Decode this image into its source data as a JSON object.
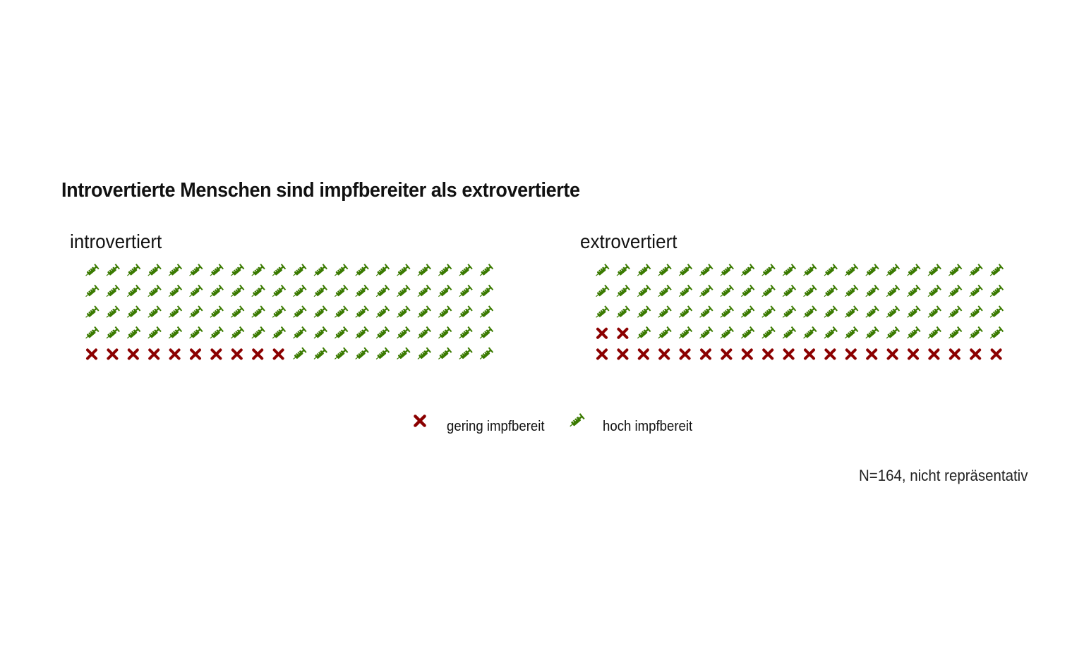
{
  "chart_data": {
    "type": "waffle",
    "title": "Introvertierte Menschen sind impfbereiter als extrovertierte",
    "caption": "N=164, nicht repräsentativ",
    "rows": 5,
    "columns": 20,
    "categories": [
      {
        "key": "gering",
        "label": "gering impfbereit",
        "icon": "cross-icon",
        "color": "#8b0000"
      },
      {
        "key": "hoch",
        "label": "hoch impfbereit",
        "icon": "syringe-icon",
        "color": "#3a7a00"
      }
    ],
    "panels": [
      {
        "label": "introvertiert",
        "values": {
          "gering": 10,
          "hoch": 90
        }
      },
      {
        "label": "extrovertiert",
        "values": {
          "gering": 22,
          "hoch": 78
        }
      }
    ],
    "legend_position": "bottom"
  }
}
